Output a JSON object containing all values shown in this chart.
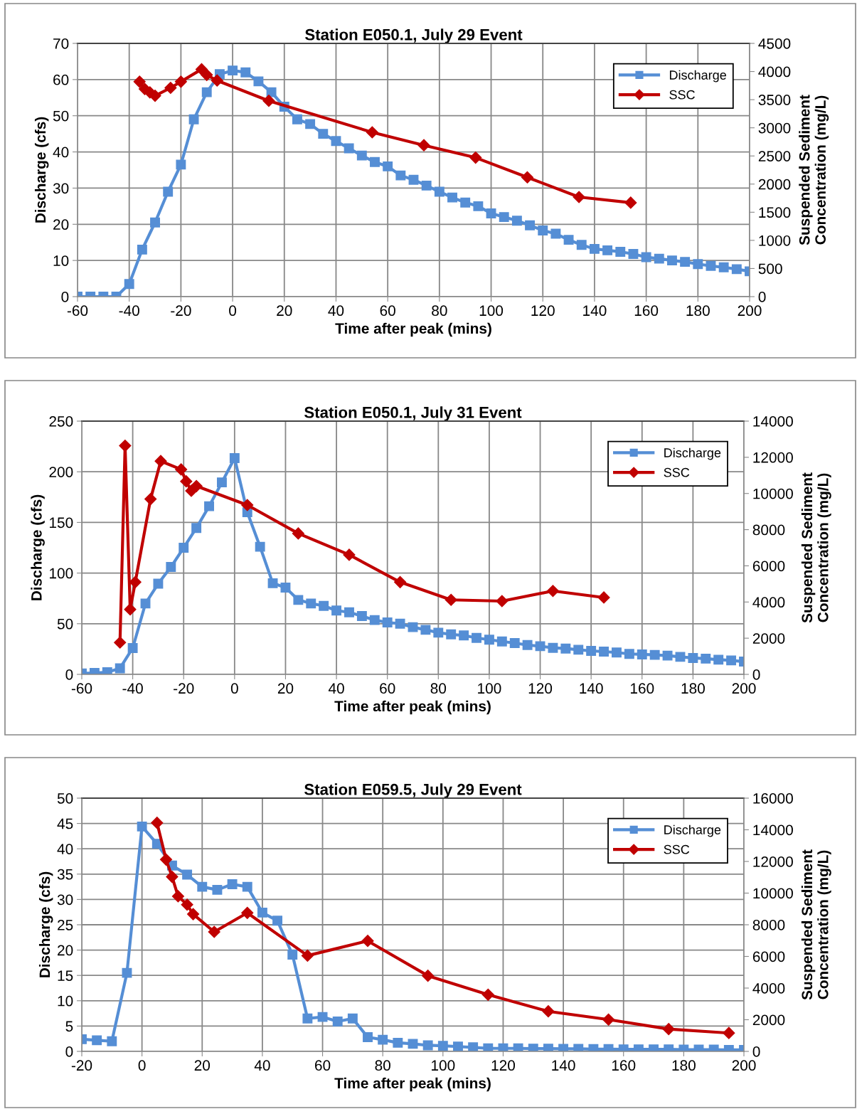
{
  "chart_data": [
    {
      "type": "line",
      "title": "Station E050.1, July 29 Event",
      "xlabel": "Time after peak (mins)",
      "ylabel": "Discharge (cfs)",
      "y2label": "Suspended Sediment\nConcentration (mg/L)",
      "xlim": [
        -60,
        200
      ],
      "xticks": [
        -60,
        -40,
        -20,
        0,
        20,
        40,
        60,
        80,
        100,
        120,
        140,
        160,
        180,
        200
      ],
      "ylim": [
        0,
        70
      ],
      "yticks": [
        0,
        10,
        20,
        30,
        40,
        50,
        60,
        70
      ],
      "y2lim": [
        0,
        4500
      ],
      "y2ticks": [
        0,
        500,
        1000,
        1500,
        2000,
        2500,
        3000,
        3500,
        4000,
        4500
      ],
      "grid": true,
      "legend": "top right",
      "series": [
        {
          "name": "Discharge",
          "color": "#558ed5",
          "marker": "square",
          "x": [
            -60,
            -55,
            -50,
            -45,
            -40,
            -35,
            -30,
            -25,
            -20,
            -15,
            -10,
            -5,
            0,
            5,
            10,
            15,
            20,
            25,
            30,
            35,
            40,
            45,
            50,
            55,
            60,
            65,
            70,
            75,
            80,
            85,
            90,
            95,
            100,
            105,
            110,
            115,
            120,
            125,
            130,
            135,
            140,
            145,
            150,
            155,
            160,
            165,
            170,
            175,
            180,
            185,
            190,
            195,
            200
          ],
          "values": [
            0,
            0,
            0,
            0,
            3.5,
            13,
            20.5,
            29,
            36.5,
            49,
            56.5,
            61.5,
            62.5,
            62,
            59.5,
            56.5,
            52.5,
            49,
            47.7,
            45,
            43,
            41,
            39,
            37.2,
            36,
            33.5,
            32.3,
            30.7,
            29,
            27.4,
            26,
            25,
            23,
            22,
            21,
            19.7,
            18.3,
            17.4,
            15.7,
            14.3,
            13.2,
            12.8,
            12.4,
            11.8,
            10.9,
            10.5,
            10,
            9.6,
            9,
            8.5,
            8.1,
            7.6,
            7
          ]
        },
        {
          "name": "SSC",
          "color": "#c00000",
          "marker": "diamond",
          "axis": "y2",
          "x": [
            -36,
            -34,
            -32,
            -30,
            -24,
            -20,
            -12,
            -10,
            -6,
            14,
            54,
            74,
            94,
            114,
            134,
            154
          ],
          "values": [
            3820,
            3690,
            3630,
            3570,
            3710,
            3820,
            4040,
            3940,
            3840,
            3480,
            2920,
            2690,
            2470,
            2120,
            1770,
            1670
          ]
        }
      ]
    },
    {
      "type": "line",
      "title": "Station E050.1, July 31 Event",
      "xlabel": "Time after peak (mins)",
      "ylabel": "Discharge (cfs)",
      "y2label": "Suspended Sediment\nConcentration (mg/L)",
      "xlim": [
        -60,
        200
      ],
      "xticks": [
        -60,
        -40,
        -20,
        0,
        20,
        40,
        60,
        80,
        100,
        120,
        140,
        160,
        180,
        200
      ],
      "ylim": [
        0,
        250
      ],
      "yticks": [
        0,
        50,
        100,
        150,
        200,
        250
      ],
      "y2lim": [
        0,
        14000
      ],
      "y2ticks": [
        0,
        2000,
        4000,
        6000,
        8000,
        10000,
        12000,
        14000
      ],
      "grid": true,
      "legend": "top right",
      "series": [
        {
          "name": "Discharge",
          "color": "#558ed5",
          "marker": "square",
          "x": [
            -60,
            -55,
            -50,
            -45,
            -40,
            -35,
            -30,
            -25,
            -20,
            -15,
            -10,
            -5,
            0,
            5,
            10,
            15,
            20,
            25,
            30,
            35,
            40,
            45,
            50,
            55,
            60,
            65,
            70,
            75,
            80,
            85,
            90,
            95,
            100,
            105,
            110,
            115,
            120,
            125,
            130,
            135,
            140,
            145,
            150,
            155,
            160,
            165,
            170,
            175,
            180,
            185,
            190,
            195,
            200
          ],
          "values": [
            1,
            1.4,
            2.1,
            6,
            26,
            70,
            89.5,
            106,
            125,
            144.5,
            166,
            189.5,
            213.5,
            160,
            126,
            90,
            85.7,
            73.5,
            70,
            67.6,
            63,
            61.3,
            57.6,
            53.6,
            51.3,
            50,
            46.6,
            44,
            41.2,
            39.5,
            38.4,
            36,
            34.2,
            32.5,
            30.9,
            29,
            27.8,
            26.2,
            25.5,
            24.3,
            23.2,
            22.5,
            21.6,
            20.2,
            19.7,
            19.2,
            18.5,
            17.3,
            16.2,
            15.5,
            14.5,
            13.8,
            12.6
          ]
        },
        {
          "name": "SSC",
          "color": "#c00000",
          "marker": "diamond",
          "axis": "y2",
          "x": [
            -45,
            -43,
            -41,
            -39,
            -33,
            -29,
            -21,
            -19,
            -17,
            -15,
            5,
            25,
            45,
            65,
            85,
            105,
            125,
            145
          ],
          "values": [
            1760,
            12640,
            3590,
            5100,
            9690,
            11790,
            11330,
            10670,
            10150,
            10410,
            9360,
            7790,
            6610,
            5100,
            4120,
            4050,
            4610,
            4250
          ]
        }
      ]
    },
    {
      "type": "line",
      "title": "Station E059.5, July 29 Event",
      "xlabel": "Time after peak (mins)",
      "ylabel": "Discharge (cfs)",
      "y2label": "Suspended Sediment\nConcentration (mg/L)",
      "xlim": [
        -20,
        200
      ],
      "xticks": [
        -20,
        0,
        20,
        40,
        60,
        80,
        100,
        120,
        140,
        160,
        180,
        200
      ],
      "ylim": [
        0,
        50
      ],
      "yticks": [
        0,
        5,
        10,
        15,
        20,
        25,
        30,
        35,
        40,
        45,
        50
      ],
      "y2lim": [
        0,
        16000
      ],
      "y2ticks": [
        0,
        2000,
        4000,
        6000,
        8000,
        10000,
        12000,
        14000,
        16000
      ],
      "grid": true,
      "legend": "top right",
      "series": [
        {
          "name": "Discharge",
          "color": "#558ed5",
          "marker": "square",
          "x": [
            -20,
            -15,
            -10,
            -5,
            0,
            5,
            10,
            15,
            20,
            25,
            30,
            35,
            40,
            45,
            50,
            55,
            60,
            65,
            70,
            75,
            80,
            85,
            90,
            95,
            100,
            105,
            110,
            115,
            120,
            125,
            130,
            135,
            140,
            145,
            150,
            155,
            160,
            165,
            170,
            175,
            180,
            185,
            190,
            195,
            200
          ],
          "values": [
            2.4,
            2.2,
            2,
            15.5,
            44.4,
            41,
            36.7,
            34.9,
            32.5,
            31.9,
            33,
            32.5,
            27.4,
            25.8,
            19.1,
            6.5,
            6.8,
            5.9,
            6.5,
            2.8,
            2.3,
            1.7,
            1.5,
            1.2,
            1.1,
            0.95,
            0.8,
            0.6,
            0.6,
            0.6,
            0.55,
            0.55,
            0.5,
            0.5,
            0.45,
            0.45,
            0.4,
            0.4,
            0.4,
            0.4,
            0.35,
            0.35,
            0.35,
            0.3,
            0.3
          ]
        },
        {
          "name": "SSC",
          "color": "#c00000",
          "marker": "diamond",
          "axis": "y2",
          "x": [
            5,
            8,
            10,
            12,
            15,
            17,
            24,
            35,
            55,
            75,
            95,
            115,
            135,
            155,
            175,
            195
          ],
          "values": [
            14440,
            12120,
            11030,
            9800,
            9270,
            8670,
            7550,
            8750,
            6050,
            6980,
            4780,
            3580,
            2530,
            2010,
            1410,
            1160
          ]
        }
      ]
    }
  ]
}
